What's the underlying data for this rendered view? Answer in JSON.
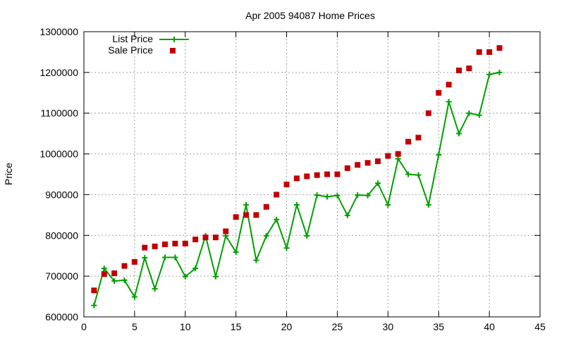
{
  "chart_data": {
    "type": "line",
    "title": "Apr 2005 94087 Home Prices",
    "xlabel": "",
    "ylabel": "Price",
    "xlim": [
      0,
      45
    ],
    "ylim": [
      600000,
      1300000
    ],
    "xticks": [
      0,
      5,
      10,
      15,
      20,
      25,
      30,
      35,
      40,
      45
    ],
    "yticks": [
      600000,
      700000,
      800000,
      900000,
      1000000,
      1100000,
      1200000,
      1300000
    ],
    "grid": true,
    "legend_position": "top-left",
    "series": [
      {
        "name": "List Price",
        "style": "line+cross",
        "color": "#00a000",
        "x": [
          1,
          2,
          3,
          4,
          5,
          6,
          7,
          8,
          9,
          10,
          11,
          12,
          13,
          14,
          15,
          16,
          17,
          18,
          19,
          20,
          21,
          22,
          23,
          24,
          25,
          26,
          27,
          28,
          29,
          30,
          31,
          32,
          33,
          34,
          35,
          36,
          37,
          38,
          39,
          40,
          41
        ],
        "y": [
          628000,
          719000,
          688000,
          690000,
          649000,
          745000,
          669000,
          746000,
          746000,
          699000,
          719000,
          799000,
          699000,
          799000,
          759000,
          875000,
          739000,
          799000,
          839000,
          769000,
          875000,
          799000,
          899000,
          895000,
          898000,
          849000,
          899000,
          898000,
          928000,
          875000,
          988000,
          950000,
          948000,
          875000,
          998000,
          1128000,
          1050000,
          1100000,
          1095000,
          1195000,
          1200000
        ]
      },
      {
        "name": "Sale Price",
        "style": "square",
        "color": "#c00000",
        "x": [
          1,
          2,
          3,
          4,
          5,
          6,
          7,
          8,
          9,
          10,
          11,
          12,
          13,
          14,
          15,
          16,
          17,
          18,
          19,
          20,
          21,
          22,
          23,
          24,
          25,
          26,
          27,
          28,
          29,
          30,
          31,
          32,
          33,
          34,
          35,
          36,
          37,
          38,
          39,
          40,
          41
        ],
        "y": [
          665000,
          705000,
          707000,
          725000,
          735000,
          770000,
          773000,
          778000,
          780000,
          780000,
          790000,
          795000,
          795000,
          810000,
          845000,
          850000,
          850000,
          870000,
          900000,
          925000,
          940000,
          945000,
          948000,
          950000,
          950000,
          965000,
          973000,
          978000,
          982000,
          995000,
          1000000,
          1030000,
          1040000,
          1100000,
          1150000,
          1170000,
          1205000,
          1210000,
          1250000,
          1250000,
          1260000
        ]
      }
    ]
  }
}
